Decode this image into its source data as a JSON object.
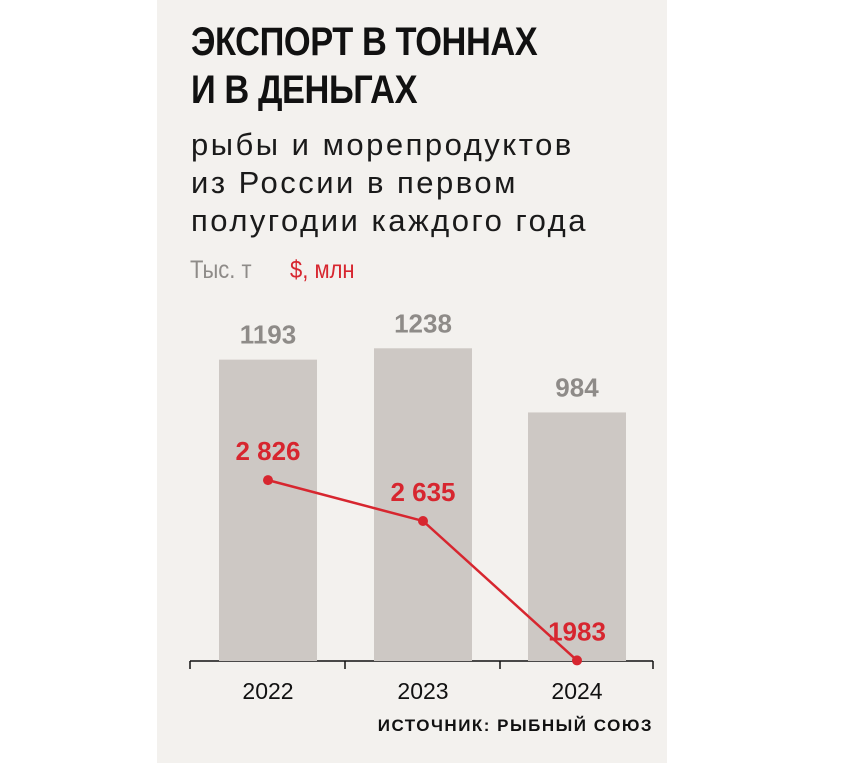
{
  "title_line1": "ЭКСПОРТ В ТОННАХ",
  "title_line2": "И В ДЕНЬГАХ",
  "subtitle_line1": "рыбы и морепродуктов",
  "subtitle_line2": "из России в первом",
  "subtitle_line3": "полугодии каждого года",
  "legend": {
    "tonnes": "Тыс. т",
    "usd": "$, млн"
  },
  "source": "ИСТОЧНИК: РЫБНЫЙ СОЮЗ",
  "colors": {
    "bar": "#cdc8c4",
    "line": "#d7262f",
    "bar_label": "#8e8b88",
    "background": "#f3f1ee"
  },
  "chart_data": {
    "type": "bar",
    "categories": [
      "2022",
      "2023",
      "2024"
    ],
    "series": [
      {
        "name": "Тыс. т",
        "type": "bar",
        "values": [
          1193,
          1238,
          984
        ],
        "labels": [
          "1193",
          "1238",
          "984"
        ]
      },
      {
        "name": "$, млн",
        "type": "line",
        "values": [
          2826,
          2635,
          1983
        ],
        "labels": [
          "2 826",
          "2 635",
          "1983"
        ]
      }
    ],
    "grid": false
  }
}
